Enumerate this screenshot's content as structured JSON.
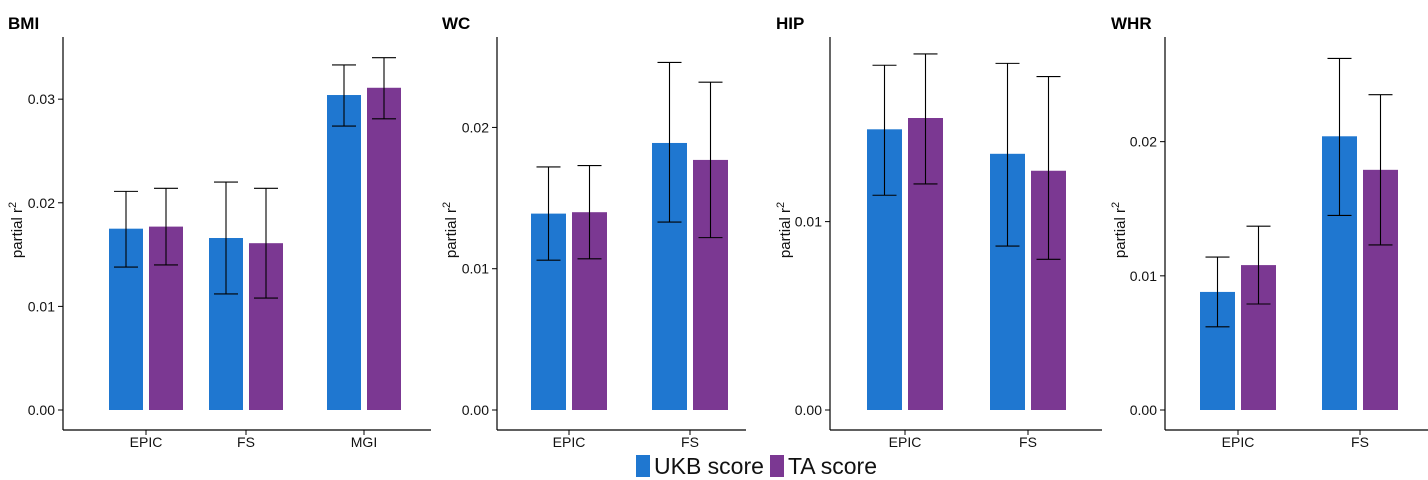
{
  "chart_data": [
    {
      "type": "bar",
      "title": "BMI",
      "ylabel": "partial r",
      "ylabel_sup": "2",
      "categories": [
        "EPIC",
        "FS",
        "MGI"
      ],
      "ylim": [
        0,
        0.036
      ],
      "yticks": [
        0.0,
        0.01,
        0.02,
        0.03
      ],
      "yticklabels": [
        "0.00",
        "0.01",
        "0.02",
        "0.03"
      ],
      "series": [
        {
          "name": "UKB score",
          "values": [
            0.0175,
            0.0166,
            0.0304
          ],
          "err_low": [
            0.0138,
            0.0112,
            0.0274
          ],
          "err_high": [
            0.0211,
            0.022,
            0.0333
          ]
        },
        {
          "name": "TA score",
          "values": [
            0.0177,
            0.0161,
            0.0311
          ],
          "err_low": [
            0.014,
            0.0108,
            0.0281
          ],
          "err_high": [
            0.0214,
            0.0214,
            0.034
          ]
        }
      ]
    },
    {
      "type": "bar",
      "title": "WC",
      "ylabel": "partial r",
      "ylabel_sup": "2",
      "categories": [
        "EPIC",
        "FS"
      ],
      "ylim": [
        0,
        0.0264
      ],
      "yticks": [
        0.0,
        0.01,
        0.02
      ],
      "yticklabels": [
        "0.00",
        "0.01",
        "0.02"
      ],
      "series": [
        {
          "name": "UKB score",
          "values": [
            0.0139,
            0.0189
          ],
          "err_low": [
            0.0106,
            0.0133
          ],
          "err_high": [
            0.0172,
            0.0246
          ]
        },
        {
          "name": "TA score",
          "values": [
            0.014,
            0.0177
          ],
          "err_low": [
            0.0107,
            0.0122
          ],
          "err_high": [
            0.0173,
            0.0232
          ]
        }
      ]
    },
    {
      "type": "bar",
      "title": "HIP",
      "ylabel": "partial r",
      "ylabel_sup": "2",
      "categories": [
        "EPIC",
        "FS"
      ],
      "ylim": [
        0,
        0.0198
      ],
      "yticks": [
        0.0,
        0.01
      ],
      "yticklabels": [
        "0.00",
        "0.01"
      ],
      "series": [
        {
          "name": "UKB score",
          "values": [
            0.0149,
            0.0136
          ],
          "err_low": [
            0.0114,
            0.0087
          ],
          "err_high": [
            0.0183,
            0.0184
          ]
        },
        {
          "name": "TA score",
          "values": [
            0.0155,
            0.0127
          ],
          "err_low": [
            0.012,
            0.008
          ],
          "err_high": [
            0.0189,
            0.0177
          ]
        }
      ]
    },
    {
      "type": "bar",
      "title": "WHR",
      "ylabel": "partial r",
      "ylabel_sup": "2",
      "categories": [
        "EPIC",
        "FS"
      ],
      "ylim": [
        0,
        0.0278
      ],
      "yticks": [
        0.0,
        0.01,
        0.02
      ],
      "yticklabels": [
        "0.00",
        "0.01",
        "0.02"
      ],
      "series": [
        {
          "name": "UKB score",
          "values": [
            0.0088,
            0.0204
          ],
          "err_low": [
            0.0062,
            0.0145
          ],
          "err_high": [
            0.0114,
            0.0262
          ]
        },
        {
          "name": "TA score",
          "values": [
            0.0108,
            0.0179
          ],
          "err_low": [
            0.0079,
            0.0123
          ],
          "err_high": [
            0.0137,
            0.0235
          ]
        }
      ]
    }
  ],
  "legend": {
    "items": [
      {
        "label": "UKB score",
        "color": "#1f77d0"
      },
      {
        "label": "TA score",
        "color": "#7b3892"
      }
    ]
  },
  "colors": {
    "ukb": "#1f77d0",
    "ta": "#7b3892",
    "axis": "#000000"
  }
}
